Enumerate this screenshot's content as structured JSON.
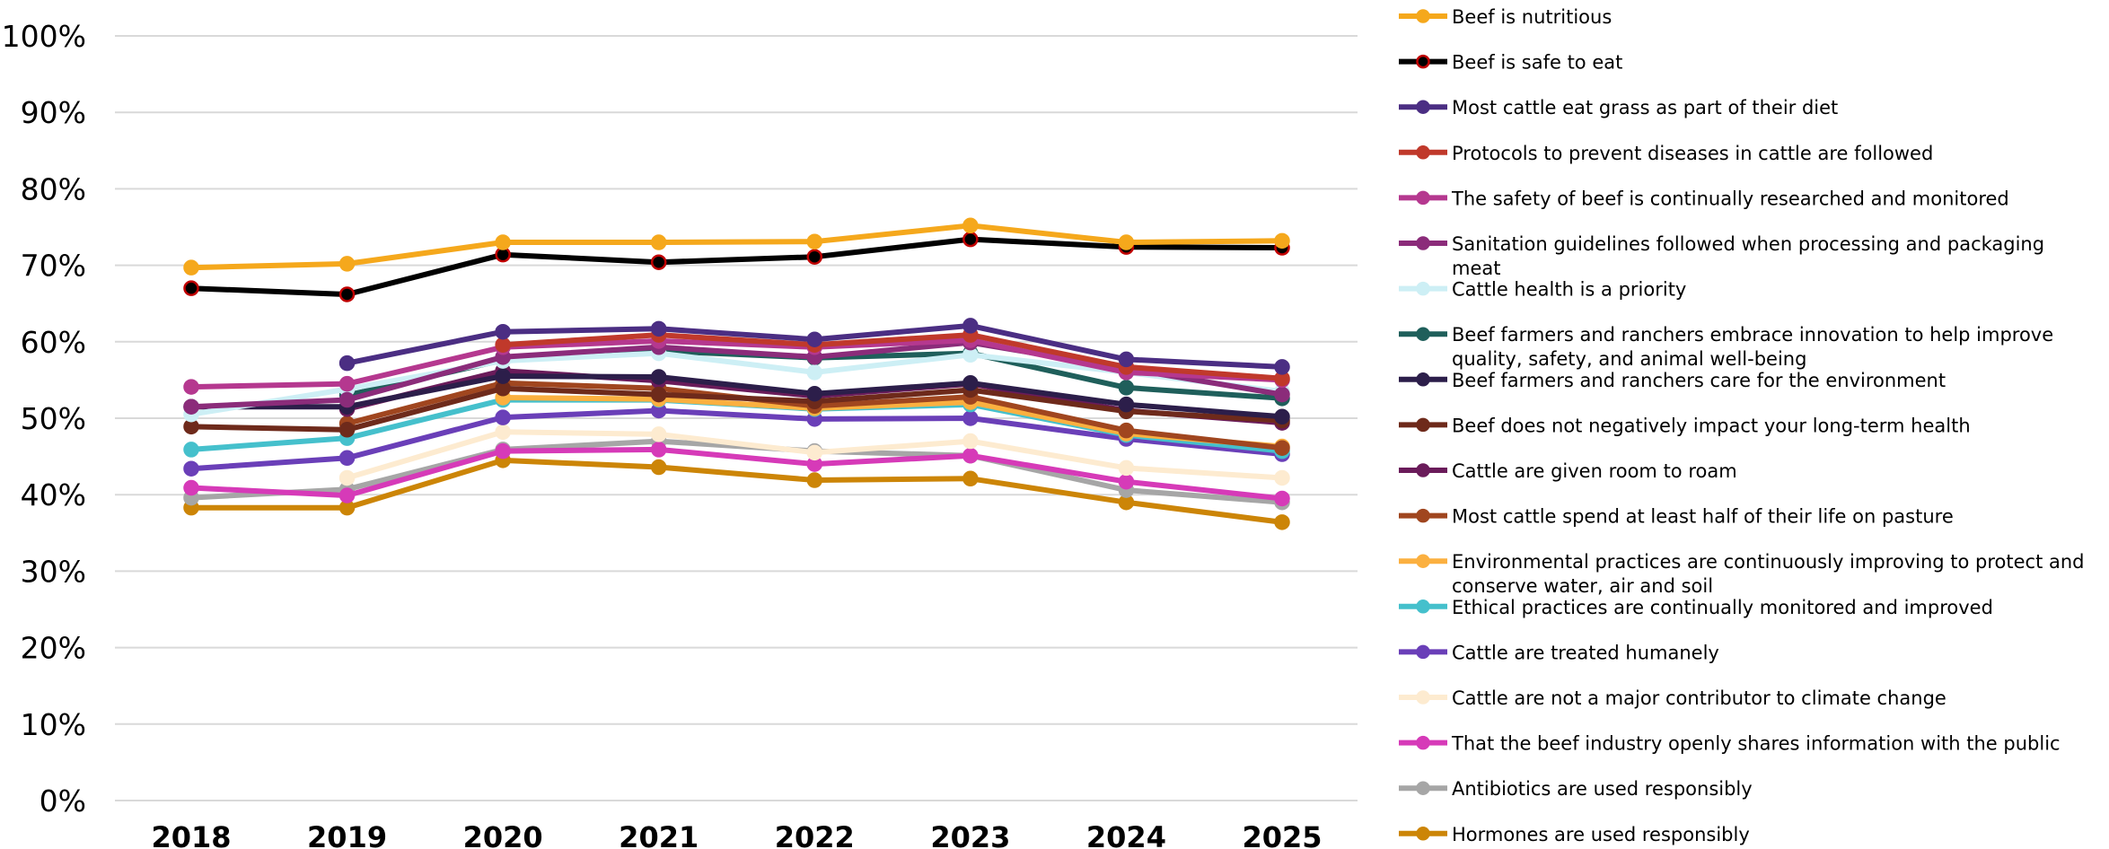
{
  "chart_data": {
    "type": "line",
    "title": "",
    "xlabel": "",
    "ylabel": "",
    "x": [
      "2018",
      "2019",
      "2020",
      "2021",
      "2022",
      "2023",
      "2024",
      "2025"
    ],
    "ylim": [
      0,
      100
    ],
    "y_ticks": [
      "0%",
      "10%",
      "20%",
      "30%",
      "40%",
      "50%",
      "60%",
      "70%",
      "80%",
      "90%",
      "100%"
    ],
    "grid": "horizontal",
    "legend_position": "right",
    "series": [
      {
        "name": "Beef is nutritious",
        "color": "#F5A81C",
        "marker_edge": "#F5A81C",
        "values": [
          69.7,
          70.2,
          73.0,
          73.0,
          73.1,
          75.2,
          73.0,
          73.2
        ]
      },
      {
        "name": "Beef is safe to eat",
        "color": "#000000",
        "marker_edge": "#C00000",
        "values": [
          67.0,
          66.2,
          71.4,
          70.4,
          71.1,
          73.4,
          72.4,
          72.3
        ]
      },
      {
        "name": "Most cattle eat grass as part of their diet",
        "color": "#4B2E83",
        "marker_edge": "#4B2E83",
        "values": [
          null,
          57.2,
          61.3,
          61.7,
          60.3,
          62.1,
          57.7,
          56.7
        ]
      },
      {
        "name": "Protocols to prevent diseases in cattle are followed",
        "color": "#C0392B",
        "marker_edge": "#C0392B",
        "values": [
          null,
          null,
          59.6,
          60.9,
          59.6,
          60.9,
          56.7,
          55.2
        ]
      },
      {
        "name": "The safety of beef is continually researched and monitored",
        "color": "#B5388F",
        "marker_edge": "#B5388F",
        "values": [
          54.1,
          54.5,
          59.3,
          60.1,
          59.3,
          60.2,
          56.0,
          55.0
        ]
      },
      {
        "name": "Sanitation guidelines followed when processing and packaging meat",
        "color": "#8B2C7A",
        "marker_edge": "#8B2C7A",
        "values": [
          51.5,
          52.4,
          58.0,
          59.3,
          58.0,
          59.9,
          56.5,
          53.1
        ]
      },
      {
        "name": "Cattle health is a priority",
        "color": "#CDEFF5",
        "marker_edge": "#CDEFF5",
        "values": [
          50.5,
          53.8,
          57.5,
          58.5,
          56.0,
          58.3,
          56.0,
          53.5
        ]
      },
      {
        "name": "Beef farmers and ranchers embrace innovation to help improve quality, safety, and animal well-being",
        "color": "#1F5F5B",
        "marker_edge": "#1F5F5B",
        "values": [
          null,
          53.0,
          57.6,
          58.8,
          57.9,
          58.5,
          54.0,
          52.6
        ]
      },
      {
        "name": "Beef farmers and ranchers care for the environment",
        "color": "#2C1E4A",
        "marker_edge": "#2C1E4A",
        "values": [
          51.5,
          51.5,
          55.5,
          55.4,
          53.2,
          54.6,
          51.8,
          50.2
        ]
      },
      {
        "name": "Beef does not negatively impact your long-term health",
        "color": "#6E2A1B",
        "marker_edge": "#6E2A1B",
        "values": [
          48.9,
          48.5,
          53.9,
          53.1,
          52.2,
          53.7,
          50.9,
          49.7
        ]
      },
      {
        "name": "Cattle are given room to roam",
        "color": "#6A1B5A",
        "marker_edge": "#6A1B5A",
        "values": [
          null,
          51.2,
          56.2,
          54.9,
          52.9,
          54.5,
          51.0,
          49.4
        ]
      },
      {
        "name": "Most cattle spend at least half of their life on pasture",
        "color": "#A0461F",
        "marker_edge": "#A0461F",
        "values": [
          null,
          49.3,
          54.6,
          53.9,
          51.6,
          52.8,
          48.4,
          46.1
        ]
      },
      {
        "name": "Environmental practices are continuously improving to protect and conserve water, air and soil",
        "color": "#FBB040",
        "marker_edge": "#FBB040",
        "values": [
          null,
          null,
          52.7,
          52.5,
          51.3,
          52.1,
          48.0,
          46.3
        ]
      },
      {
        "name": "Ethical practices are continually monitored and improved",
        "color": "#45C0CC",
        "marker_edge": "#45C0CC",
        "values": [
          45.9,
          47.4,
          52.4,
          52.4,
          51.2,
          51.8,
          47.8,
          45.7
        ]
      },
      {
        "name": "Cattle are treated humanely",
        "color": "#6A3FB8",
        "marker_edge": "#6A3FB8",
        "values": [
          43.4,
          44.8,
          50.1,
          51.0,
          49.9,
          50.0,
          47.3,
          45.3
        ]
      },
      {
        "name": "Cattle are not a major contributor to climate change",
        "color": "#FDEBD0",
        "marker_edge": "#FDEBD0",
        "values": [
          null,
          42.2,
          48.2,
          47.9,
          45.5,
          47.0,
          43.5,
          42.2
        ]
      },
      {
        "name": "That the beef industry openly shares information with the public",
        "color": "#D63AB8",
        "marker_edge": "#D63AB8",
        "values": [
          40.9,
          39.9,
          45.7,
          45.9,
          44.0,
          45.1,
          41.7,
          39.5
        ]
      },
      {
        "name": "Antibiotics are used responsibly",
        "color": "#A6A6A6",
        "marker_edge": "#A6A6A6",
        "values": [
          39.6,
          40.7,
          45.9,
          47.0,
          45.7,
          45.1,
          40.6,
          39.0
        ]
      },
      {
        "name": "Hormones are used responsibly",
        "color": "#CC8507",
        "marker_edge": "#CC8507",
        "values": [
          38.3,
          38.3,
          44.5,
          43.6,
          41.9,
          42.1,
          39.0,
          36.4
        ]
      }
    ]
  }
}
